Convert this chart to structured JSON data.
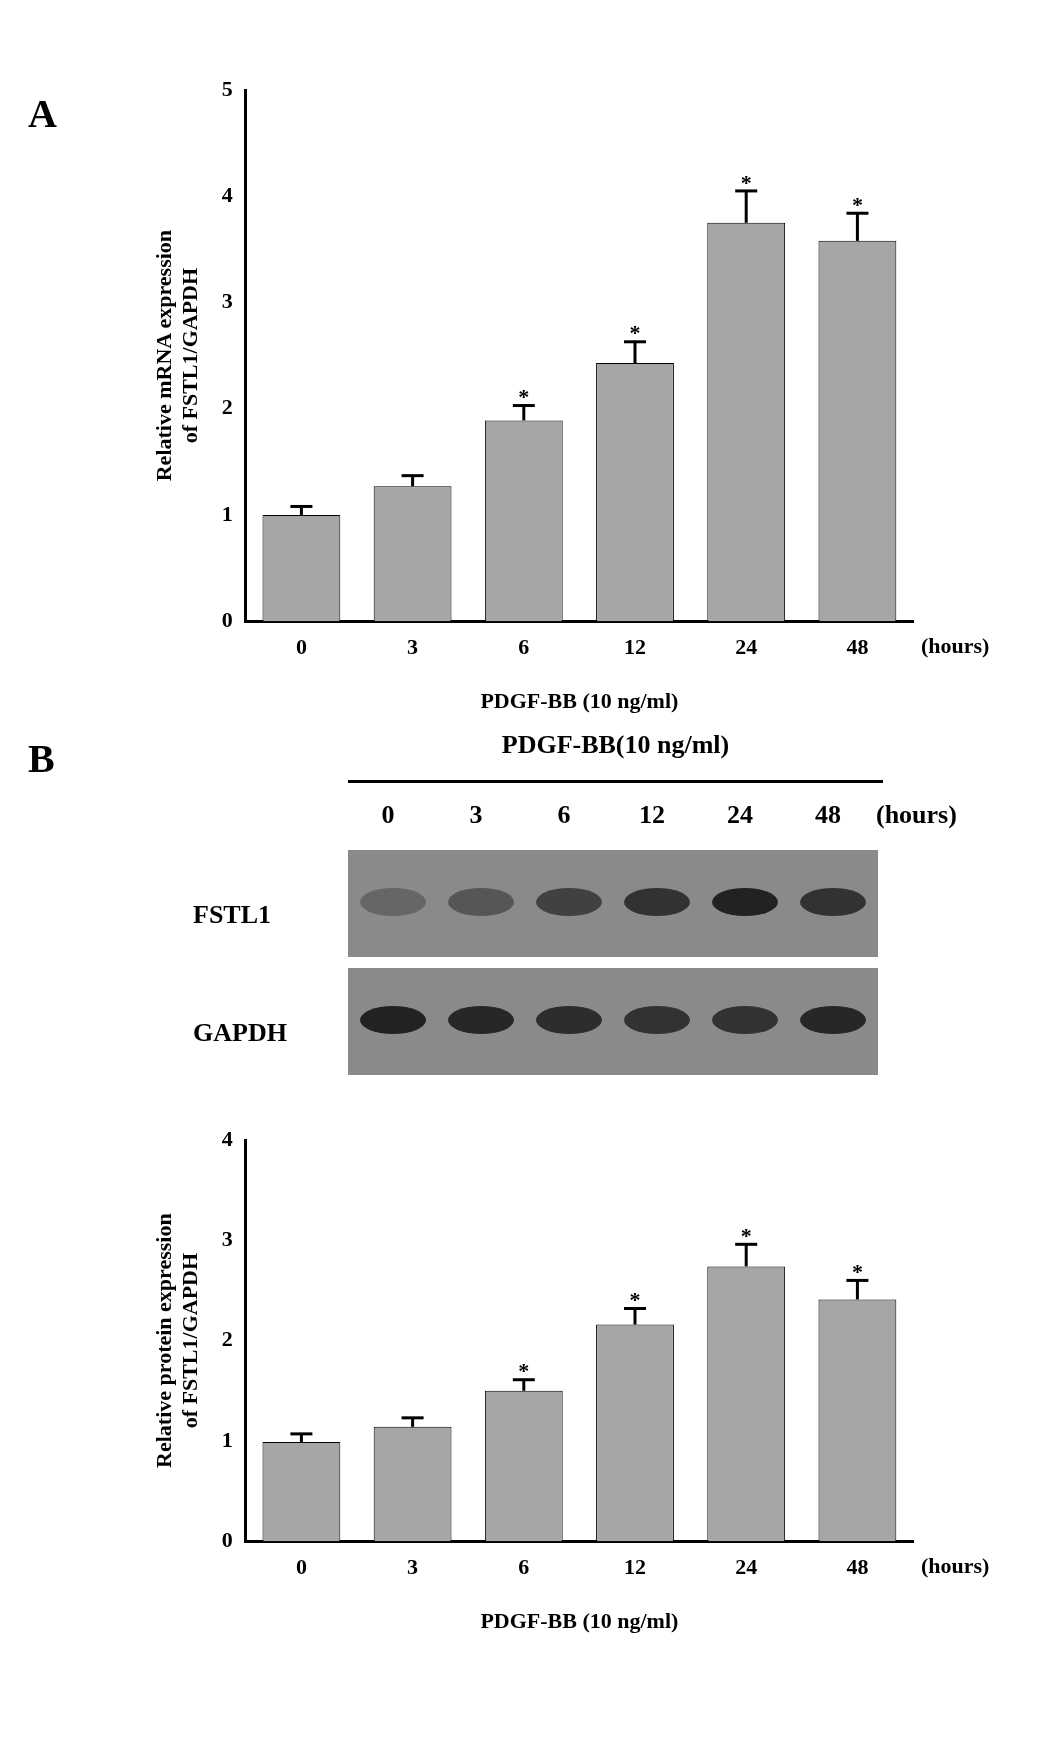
{
  "chart_data": [
    {
      "type": "bar",
      "title": "A",
      "xlabel": "PDGF-BB (10 ng/ml)",
      "ylabel": "Relative mRNA expression of FSTL1/GAPDH",
      "categories": [
        "0",
        "3",
        "6",
        "12",
        "24",
        "48"
      ],
      "values": [
        1.0,
        1.27,
        1.89,
        2.43,
        3.75,
        3.58
      ],
      "errors": [
        [
          1.0,
          1.08
        ],
        [
          1.27,
          1.37
        ],
        [
          1.89,
          2.03
        ],
        [
          2.43,
          2.63
        ],
        [
          3.75,
          4.05
        ],
        [
          3.58,
          3.84
        ]
      ],
      "color": "#a6a6a6",
      "ylim": [
        0,
        5
      ],
      "yticks": [
        0,
        1,
        2,
        3,
        4,
        5
      ],
      "grid": false,
      "legend": false,
      "annotations": [
        "(hours)",
        {
          "text": "*",
          "x": "6",
          "y": 2.03
        },
        {
          "text": "*",
          "x": "12",
          "y": 2.63
        },
        {
          "text": "*",
          "x": "24",
          "y": 4.05
        },
        {
          "text": "*",
          "x": "48",
          "y": 3.84
        }
      ]
    },
    {
      "type": "other",
      "title": "B",
      "subtitle": "PDGF-BB(10 ng/ml)",
      "categories": [
        "0",
        "3",
        "6",
        "12",
        "24",
        "48"
      ],
      "y_categories": [
        "FSTL1",
        "GAPDH"
      ],
      "annotations": [
        "(hours)"
      ]
    },
    {
      "type": "bar",
      "xlabel": "PDGF-BB (10 ng/ml)",
      "ylabel": "Relative protein expression of FSTL1/GAPDH",
      "categories": [
        "0",
        "3",
        "6",
        "12",
        "24",
        "48"
      ],
      "values": [
        0.99,
        1.14,
        1.5,
        2.16,
        2.74,
        2.41
      ],
      "errors": [
        [
          0.99,
          1.07
        ],
        [
          1.14,
          1.23
        ],
        [
          1.5,
          1.61
        ],
        [
          2.16,
          2.32
        ],
        [
          2.74,
          2.96
        ],
        [
          2.41,
          2.6
        ]
      ],
      "color": "#a6a6a6",
      "ylim": [
        0,
        4
      ],
      "yticks": [
        0,
        1,
        2,
        3,
        4
      ],
      "grid": false,
      "legend": false,
      "annotations": [
        "(hours)",
        {
          "text": "*",
          "x": "6",
          "y": 1.61
        },
        {
          "text": "*",
          "x": "12",
          "y": 2.32
        },
        {
          "text": "*",
          "x": "24",
          "y": 2.96
        },
        {
          "text": "*",
          "x": "48",
          "y": 2.6
        }
      ]
    }
  ]
}
